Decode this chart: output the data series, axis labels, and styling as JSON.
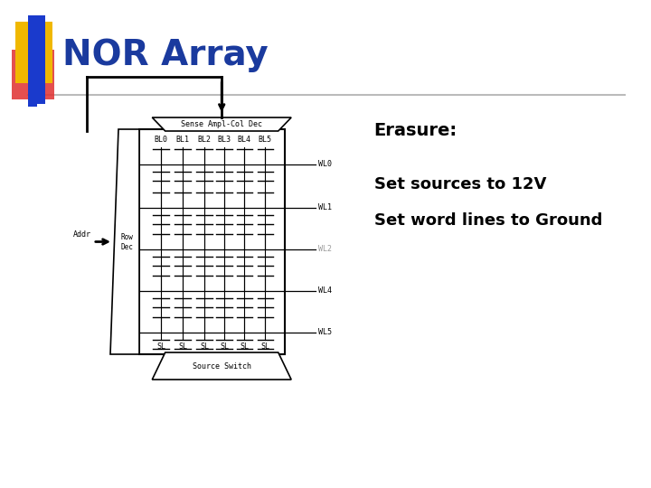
{
  "title": "NOR Array",
  "title_color": "#1a3a9e",
  "title_fontsize": 28,
  "bg_color": "#ffffff",
  "erasure_label": "Erasure:",
  "bullet1": "Set sources to 12V",
  "bullet2": "Set word lines to Ground",
  "logo_yellow": "#f0b800",
  "logo_red": "#e03030",
  "logo_blue": "#1a3acc",
  "wl_labels": [
    "WL0",
    "WL1",
    "WL2",
    "WL4",
    "WL5"
  ],
  "wl_label_alpha": [
    1.0,
    1.0,
    0.4,
    1.0,
    1.0
  ],
  "bl_labels": [
    "BL0",
    "BL1",
    "BL2",
    "BL3",
    "BL4",
    "BL5"
  ],
  "sl_labels": [
    "SL",
    "SL",
    "SL",
    "SL",
    "SL",
    "SL"
  ],
  "num_cols": 6,
  "num_rows": 5
}
